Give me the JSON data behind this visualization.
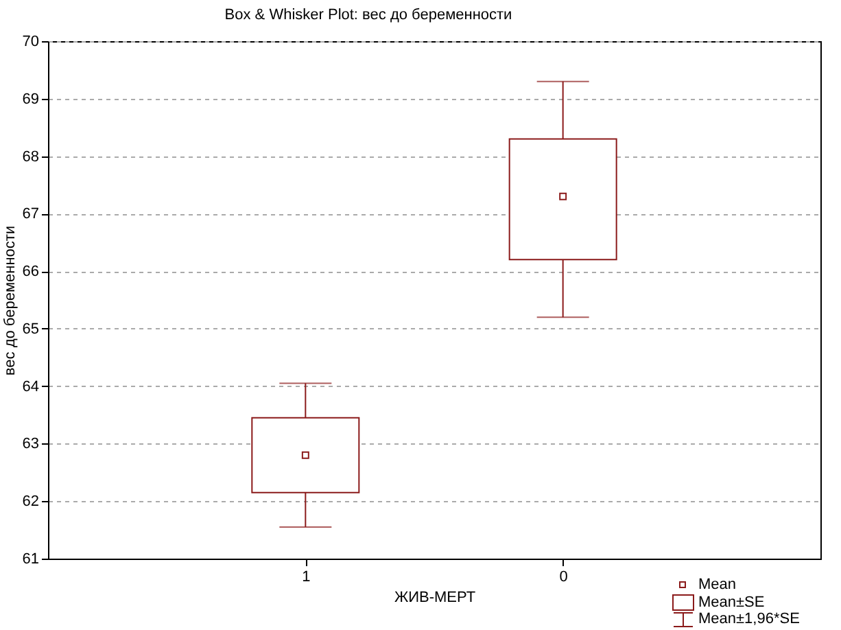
{
  "chart_data": {
    "type": "box",
    "title": "Box & Whisker Plot: вес до беременности",
    "xlabel": "ЖИВ-МЕРТ",
    "ylabel": "вес до беременности",
    "categories": [
      "1",
      "0"
    ],
    "boxes": [
      {
        "low": 61.55,
        "q1": 62.15,
        "q3": 63.45,
        "high": 64.05,
        "mean": 62.8
      },
      {
        "low": 65.2,
        "q1": 66.2,
        "q3": 68.3,
        "high": 69.3,
        "mean": 67.3
      }
    ],
    "color": "#8b1a1a",
    "marker": "square",
    "ylim": [
      61,
      70
    ],
    "yticks": [
      61,
      62,
      63,
      64,
      65,
      66,
      67,
      68,
      69,
      70
    ],
    "grid": "y",
    "annotations": [
      "Mean",
      "Mean±SE",
      "Mean±1,96*SE"
    ]
  }
}
